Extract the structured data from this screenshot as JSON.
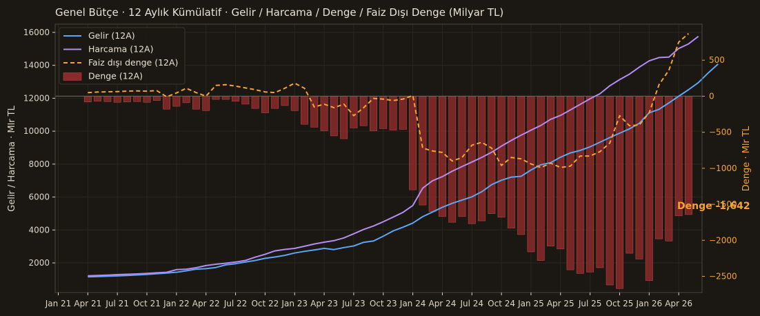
{
  "chart_data": {
    "type": "line",
    "title": "Genel Bütçe · 12 Aylık Kümülatif · Gelir / Harcama / Denge / Faiz Dışı Denge (Milyar TL)",
    "ylabel": "Gelir / Harcama · Mlr TL",
    "y2label": "Denge · Mlr TL",
    "ylim": [
      200,
      16500
    ],
    "y2lim": [
      -2725,
      1000
    ],
    "y_ticks": [
      "2000",
      "4000",
      "6000",
      "8000",
      "10000",
      "12000",
      "14000",
      "16000"
    ],
    "y2_ticks": [
      "500",
      "0",
      "−500",
      "−1000",
      "−1500",
      "−2000",
      "−2500"
    ],
    "x_ticks": [
      "Jan 21",
      "Apr 21",
      "Jul 21",
      "Oct 21",
      "Jan 22",
      "Apr 22",
      "Jul 22",
      "Oct 22",
      "Jan 23",
      "Apr 23",
      "Jul 23",
      "Oct 23",
      "Jan 24",
      "Apr 24",
      "Jul 24",
      "Oct 24",
      "Jan 25",
      "Apr 25",
      "Jul 25",
      "Oct 25",
      "Jan 26",
      "Apr 26"
    ],
    "x_start": "2021-04",
    "x_step": "1 month",
    "grid": true,
    "legend_position": "top-left",
    "annotation": "Denge -1,642",
    "series": [
      {
        "name": "Gelir (12A)",
        "type": "line",
        "axis": "left",
        "color": "#5da5f5",
        "values": [
          1150,
          1170,
          1190,
          1210,
          1240,
          1270,
          1300,
          1340,
          1380,
          1430,
          1520,
          1620,
          1650,
          1720,
          1880,
          1950,
          2050,
          2150,
          2280,
          2360,
          2460,
          2600,
          2700,
          2790,
          2880,
          2810,
          2930,
          3030,
          3250,
          3330,
          3620,
          3940,
          4170,
          4420,
          4810,
          5090,
          5380,
          5620,
          5820,
          6010,
          6320,
          6750,
          7020,
          7210,
          7260,
          7640,
          7960,
          8090,
          8420,
          8680,
          8830,
          9050,
          9330,
          9610,
          9880,
          10140,
          10480,
          11120,
          11330,
          11720,
          12120,
          12520,
          12950,
          13540,
          14080
        ]
      },
      {
        "name": "Harcama (12A)",
        "type": "line",
        "axis": "left",
        "color": "#b48cf2",
        "values": [
          1220,
          1240,
          1260,
          1290,
          1310,
          1330,
          1360,
          1400,
          1430,
          1590,
          1620,
          1710,
          1840,
          1920,
          1980,
          2050,
          2150,
          2350,
          2520,
          2730,
          2820,
          2880,
          3010,
          3150,
          3260,
          3350,
          3520,
          3770,
          4030,
          4240,
          4500,
          4780,
          5070,
          5490,
          6540,
          6990,
          7240,
          7570,
          7850,
          8130,
          8410,
          8720,
          9090,
          9440,
          9760,
          10060,
          10350,
          10720,
          10960,
          11290,
          11630,
          11970,
          12270,
          12760,
          13130,
          13460,
          13890,
          14270,
          14470,
          14500,
          15020,
          15300,
          15760
        ]
      },
      {
        "name": "Faiz dışı denge (12A)",
        "type": "line",
        "axis": "right",
        "color": "#f5a332",
        "dashed": true,
        "values": [
          50,
          58,
          62,
          64,
          70,
          74,
          70,
          78,
          -8,
          45,
          110,
          50,
          0,
          150,
          160,
          140,
          115,
          90,
          60,
          50,
          110,
          180,
          110,
          -150,
          -110,
          -160,
          -110,
          -270,
          -160,
          -30,
          -40,
          -60,
          -40,
          10,
          -720,
          -760,
          -780,
          -900,
          -850,
          -680,
          -640,
          -720,
          -960,
          -850,
          -870,
          -940,
          -990,
          -930,
          -990,
          -970,
          -830,
          -830,
          -770,
          -650,
          -270,
          -410,
          -400,
          -230,
          160,
          360,
          750,
          870
        ]
      },
      {
        "name": "Denge (12A)",
        "type": "bar",
        "axis": "right",
        "color": "#8a2a2a",
        "values": [
          -80,
          -70,
          -75,
          -85,
          -80,
          -75,
          -85,
          -60,
          -180,
          -140,
          -90,
          -180,
          -200,
          -45,
          -45,
          -70,
          -110,
          -170,
          -230,
          -170,
          -130,
          -200,
          -390,
          -430,
          -480,
          -550,
          -590,
          -440,
          -410,
          -480,
          -450,
          -470,
          -460,
          -1300,
          -1510,
          -1600,
          -1670,
          -1750,
          -1670,
          -1770,
          -1730,
          -1630,
          -1680,
          -1830,
          -1920,
          -2160,
          -2280,
          -2080,
          -2120,
          -2410,
          -2460,
          -2440,
          -2380,
          -2620,
          -2670,
          -2180,
          -2260,
          -2560,
          -1980,
          -2010,
          -1660,
          -1642
        ]
      }
    ]
  }
}
